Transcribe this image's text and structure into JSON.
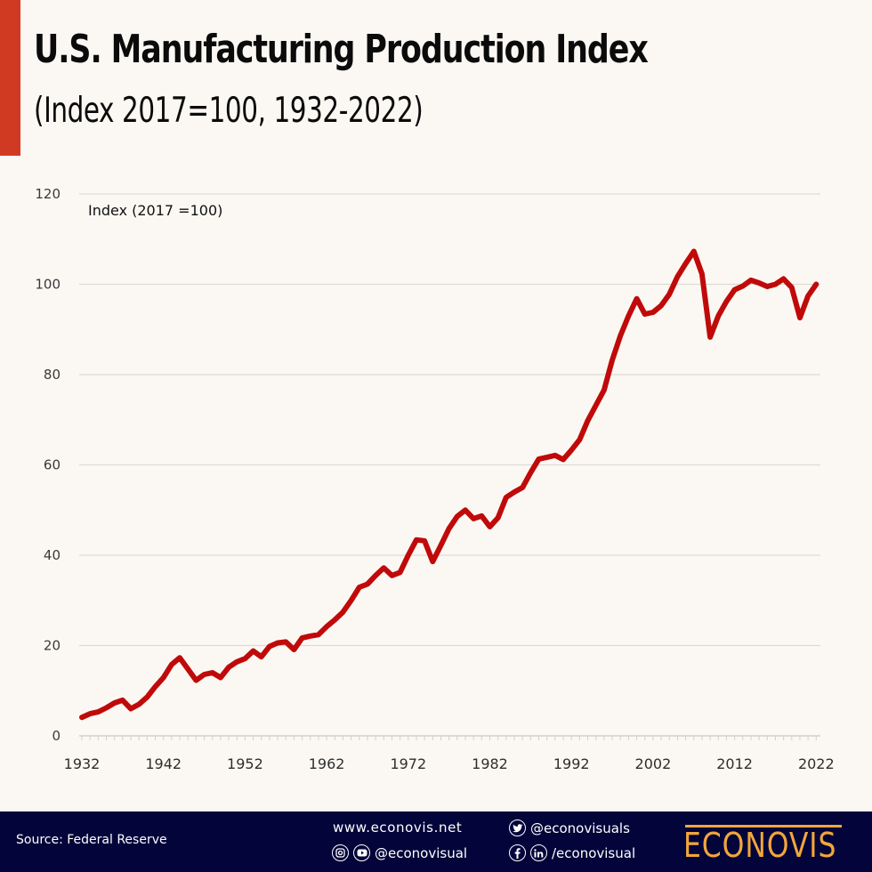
{
  "header": {
    "title": "U.S. Manufacturing Production Index",
    "subtitle": "(Index 2017=100, 1932-2022)",
    "accent_color": "#D03A22"
  },
  "chart_data": {
    "type": "line",
    "title": "U.S. Manufacturing Production Index",
    "subtitle": "(Index 2017=100, 1932-2022)",
    "xlabel": "",
    "ylabel": "Index (2017 =100)",
    "ylim": [
      0,
      120
    ],
    "xlim": [
      1932,
      2022
    ],
    "yticks": [
      0,
      20,
      40,
      60,
      80,
      100,
      120
    ],
    "xticks": [
      1932,
      1942,
      1952,
      1962,
      1972,
      1982,
      1992,
      2002,
      2012,
      2022
    ],
    "grid": true,
    "legend": "none",
    "line_color": "#C00A0A",
    "series": [
      {
        "name": "Manufacturing Production Index",
        "x": [
          1932,
          1933,
          1934,
          1935,
          1936,
          1937,
          1938,
          1939,
          1940,
          1941,
          1942,
          1943,
          1944,
          1945,
          1946,
          1947,
          1948,
          1949,
          1950,
          1951,
          1952,
          1953,
          1954,
          1955,
          1956,
          1957,
          1958,
          1959,
          1960,
          1961,
          1962,
          1963,
          1964,
          1965,
          1966,
          1967,
          1968,
          1969,
          1970,
          1971,
          1972,
          1973,
          1974,
          1975,
          1976,
          1977,
          1978,
          1979,
          1980,
          1981,
          1982,
          1983,
          1984,
          1985,
          1986,
          1987,
          1988,
          1989,
          1990,
          1991,
          1992,
          1993,
          1994,
          1995,
          1996,
          1997,
          1998,
          1999,
          2000,
          2001,
          2002,
          2003,
          2004,
          2005,
          2006,
          2007,
          2008,
          2009,
          2010,
          2011,
          2012,
          2013,
          2014,
          2015,
          2016,
          2017,
          2018,
          2019,
          2020,
          2021,
          2022
        ],
        "values": [
          4.1,
          4.9,
          5.3,
          6.2,
          7.3,
          7.9,
          6.0,
          7.0,
          8.6,
          10.9,
          12.9,
          15.8,
          17.3,
          14.8,
          12.3,
          13.6,
          14.0,
          12.9,
          15.2,
          16.4,
          17.1,
          18.8,
          17.5,
          19.8,
          20.6,
          20.8,
          19.1,
          21.7,
          22.1,
          22.4,
          24.2,
          25.7,
          27.4,
          30.0,
          32.9,
          33.6,
          35.5,
          37.2,
          35.5,
          36.2,
          40.0,
          43.4,
          43.2,
          38.6,
          42.2,
          45.9,
          48.6,
          50.0,
          48.1,
          48.7,
          46.3,
          48.3,
          52.8,
          54.0,
          55.0,
          58.3,
          61.3,
          61.7,
          62.1,
          61.2,
          63.3,
          65.6,
          69.8,
          73.2,
          76.6,
          83.2,
          88.6,
          93.0,
          96.8,
          93.4,
          93.8,
          95.3,
          97.8,
          101.7,
          104.6,
          107.3,
          102.3,
          88.3,
          93.0,
          96.2,
          98.8,
          99.6,
          100.9,
          100.3,
          99.5,
          100.0,
          101.2,
          99.3,
          92.6,
          97.4,
          100.0
        ]
      }
    ]
  },
  "footer": {
    "source": "Source: Federal Reserve",
    "website": "www.econovis.net",
    "twitter_handle": "@econovisuals",
    "instagram_youtube_handle": "@econovisual",
    "facebook_linkedin_handle": "/econovisual",
    "logo_text": "ECONOVIS",
    "logo_color": "#F2A63A",
    "background_color": "#03043A"
  }
}
